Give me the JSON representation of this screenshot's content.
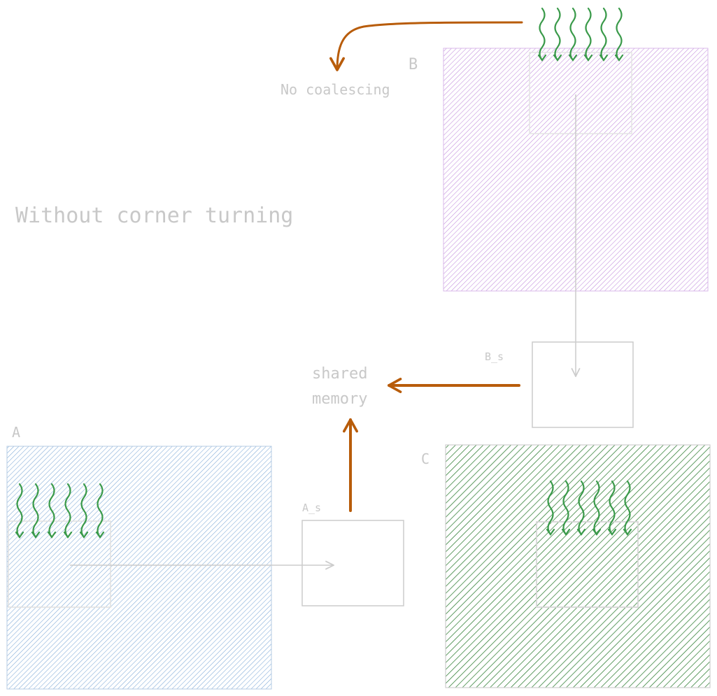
{
  "title": "Without corner turning",
  "labels": {
    "matrix_a": "A",
    "matrix_b": "B",
    "matrix_c": "C",
    "tile_a_s": "A_s",
    "tile_b_s": "B_s",
    "no_coalescing": "No coalescing",
    "shared_memory_line1": "shared",
    "shared_memory_line2": "memory"
  },
  "colors": {
    "matrix_a_hatch": "#7ba7d6",
    "matrix_b_hatch": "#c18bdb",
    "matrix_c_hatch": "#2e7d32",
    "thread_squiggle": "#3a9a4a",
    "annotation_arrow": "#b85c0a",
    "outline": "#cccccc",
    "text": "#c8c8c8"
  },
  "icons": {
    "thread_group": "wavy-threads-icon",
    "arrow": "arrow-icon"
  }
}
